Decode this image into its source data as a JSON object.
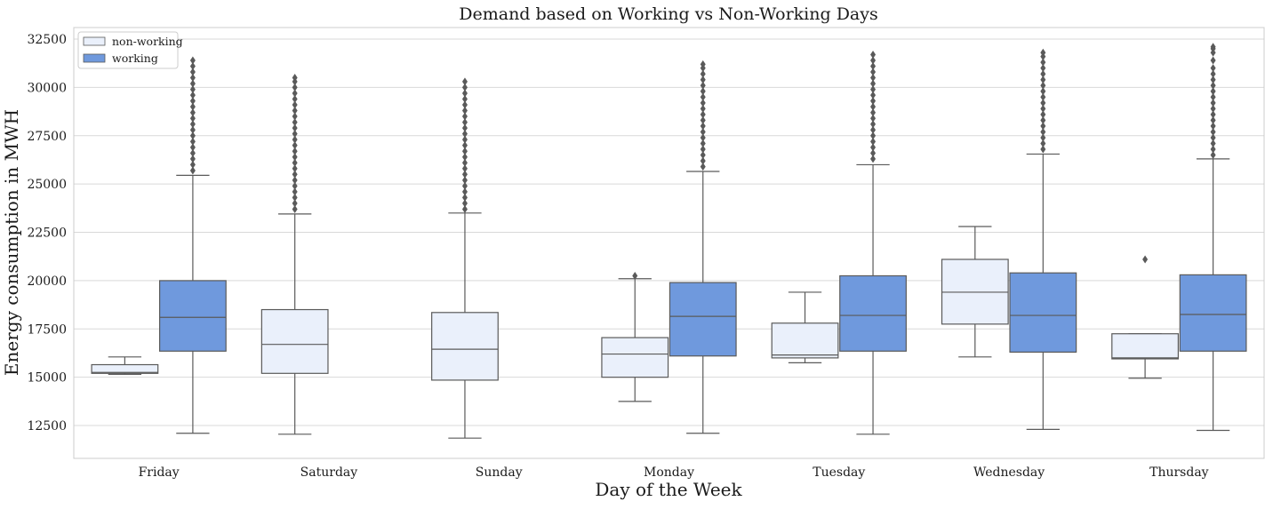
{
  "chart_data": {
    "type": "box",
    "title": "Demand based on Working vs Non-Working Days",
    "xlabel": "Day of the Week",
    "ylabel": "Energy consumption in MWH",
    "categories": [
      "Friday",
      "Saturday",
      "Sunday",
      "Monday",
      "Tuesday",
      "Wednesday",
      "Thursday"
    ],
    "yticks": [
      12500,
      15000,
      17500,
      20000,
      22500,
      25000,
      27500,
      30000,
      32500
    ],
    "ylim": [
      10800,
      33100
    ],
    "grid": true,
    "legend_position": "top-left",
    "colors": {
      "non-working": "#eaf0fb",
      "working": "#6f99dd",
      "line": "#5a5a5a",
      "grid": "#d9d9d9",
      "frame": "#cccccc"
    },
    "series": [
      {
        "name": "non-working",
        "boxes": [
          {
            "category": "Friday",
            "whislo": 15150,
            "q1": 15200,
            "median": 15250,
            "q3": 15650,
            "whishi": 16050,
            "fliers": []
          },
          {
            "category": "Saturday",
            "whislo": 12050,
            "q1": 15200,
            "median": 16700,
            "q3": 18500,
            "whishi": 23450,
            "fliers": [
              23700,
              24000,
              24300,
              24600,
              24900,
              25200,
              25500,
              25800,
              26100,
              26400,
              26700,
              27000,
              27300,
              27600,
              27900,
              28200,
              28500,
              28800,
              29100,
              29400,
              29700,
              30000,
              30300,
              30500
            ]
          },
          {
            "category": "Sunday",
            "whislo": 11850,
            "q1": 14850,
            "median": 16450,
            "q3": 18350,
            "whishi": 23500,
            "fliers": [
              23700,
              24000,
              24300,
              24600,
              24900,
              25200,
              25500,
              25800,
              26100,
              26400,
              26700,
              27000,
              27300,
              27600,
              27900,
              28200,
              28500,
              28800,
              29100,
              29400,
              29700,
              30000,
              30300
            ]
          },
          {
            "category": "Monday",
            "whislo": 13750,
            "q1": 15000,
            "median": 16200,
            "q3": 17050,
            "whishi": 20100,
            "fliers": [
              20250
            ]
          },
          {
            "category": "Tuesday",
            "whislo": 15750,
            "q1": 16000,
            "median": 16150,
            "q3": 17800,
            "whishi": 19400,
            "fliers": []
          },
          {
            "category": "Wednesday",
            "whislo": 16050,
            "q1": 17750,
            "median": 19400,
            "q3": 21100,
            "whishi": 22800,
            "fliers": []
          },
          {
            "category": "Thursday",
            "whislo": 14950,
            "q1": 15950,
            "median": 16000,
            "q3": 17250,
            "whishi": 17250,
            "fliers": [
              21100
            ]
          }
        ]
      },
      {
        "name": "working",
        "boxes": [
          {
            "category": "Friday",
            "whislo": 12100,
            "q1": 16350,
            "median": 18100,
            "q3": 20000,
            "whishi": 25450,
            "fliers": [
              25700,
              26000,
              26300,
              26600,
              26900,
              27200,
              27500,
              27800,
              28100,
              28400,
              28700,
              29000,
              29300,
              29600,
              29900,
              30200,
              30500,
              30800,
              31100,
              31400
            ]
          },
          {
            "category": "Saturday",
            "fliers": []
          },
          {
            "category": "Sunday",
            "fliers": []
          },
          {
            "category": "Monday",
            "whislo": 12100,
            "q1": 16100,
            "median": 18150,
            "q3": 19900,
            "whishi": 25650,
            "fliers": [
              25900,
              26200,
              26500,
              26800,
              27100,
              27400,
              27700,
              28000,
              28300,
              28600,
              28900,
              29200,
              29500,
              29800,
              30100,
              30400,
              30700,
              31000,
              31200
            ]
          },
          {
            "category": "Tuesday",
            "whislo": 12050,
            "q1": 16350,
            "median": 18200,
            "q3": 20250,
            "whishi": 26000,
            "fliers": [
              26300,
              26600,
              26900,
              27200,
              27500,
              27800,
              28100,
              28400,
              28700,
              29000,
              29300,
              29600,
              29900,
              30200,
              30500,
              30800,
              31100,
              31400,
              31700
            ]
          },
          {
            "category": "Wednesday",
            "whislo": 12300,
            "q1": 16300,
            "median": 18200,
            "q3": 20400,
            "whishi": 26550,
            "fliers": [
              26800,
              27100,
              27400,
              27700,
              28000,
              28300,
              28600,
              28900,
              29200,
              29500,
              29800,
              30100,
              30400,
              30700,
              31000,
              31300,
              31600,
              31800
            ]
          },
          {
            "category": "Thursday",
            "whislo": 12250,
            "q1": 16350,
            "median": 18250,
            "q3": 20300,
            "whishi": 26300,
            "fliers": [
              26500,
              26800,
              27100,
              27400,
              27700,
              28000,
              28300,
              28600,
              28900,
              29200,
              29500,
              29800,
              30100,
              30400,
              30700,
              31000,
              31400,
              31800,
              32000,
              32100
            ]
          }
        ]
      }
    ]
  }
}
